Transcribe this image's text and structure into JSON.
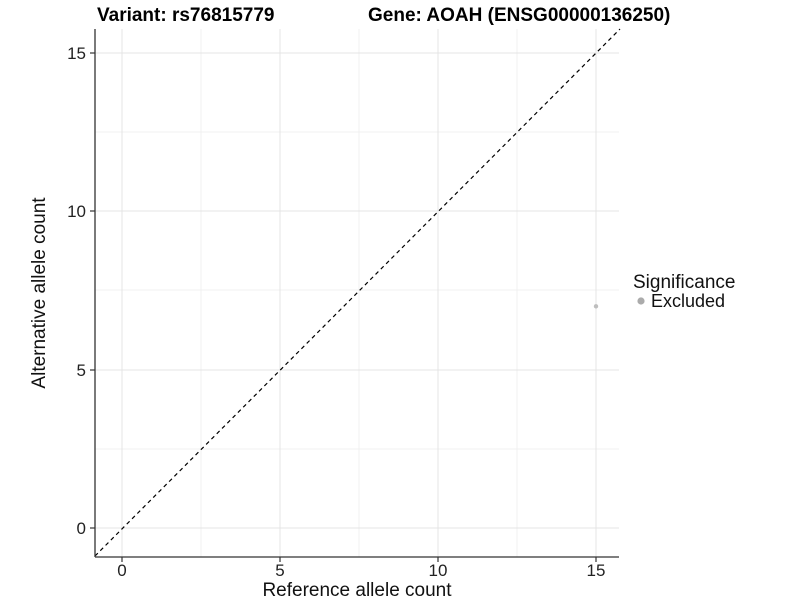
{
  "chart_data": {
    "type": "scatter",
    "titles": {
      "left": "Variant: rs76815779",
      "right": "Gene: AOAH (ENSG00000136250)"
    },
    "xlabel": "Reference allele count",
    "ylabel": "Alternative allele count",
    "xticks": [
      "0",
      "5",
      "10",
      "15"
    ],
    "yticks": [
      "0",
      "5",
      "10",
      "15"
    ],
    "xlim": [
      -0.9,
      15.75
    ],
    "ylim": [
      -0.9,
      15.75
    ],
    "grid": "major at 0,5,10,15; minor at 2.5,7.5,12.5; light gray on white",
    "reference_line": {
      "type": "identity y=x",
      "style": "dashed",
      "color": "#000000"
    },
    "points": [
      {
        "x": 15,
        "y": 7,
        "series": "Excluded",
        "color": "#bebebe",
        "radius": 2.2
      }
    ],
    "legend": {
      "position": "right",
      "title": "Significance",
      "entries": [
        {
          "label": "Excluded",
          "color": "#ababab"
        }
      ]
    },
    "colors": {
      "background": "#ffffff",
      "grid_major": "#e4e4e4",
      "grid_minor": "#f0f0f0",
      "axis": "#333333",
      "text": "#000000"
    }
  }
}
